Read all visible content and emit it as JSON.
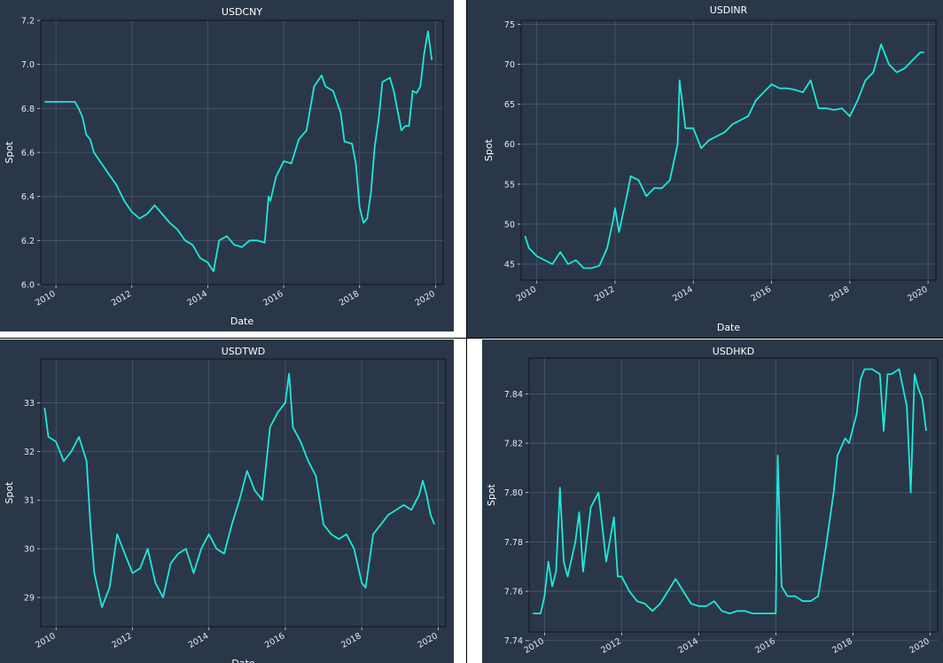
{
  "chart_data": [
    {
      "type": "line",
      "title": "USDCNY",
      "xlabel": "Date",
      "ylabel": "Spot",
      "xlim": [
        2009.6,
        2020.2
      ],
      "ylim": [
        6.0,
        7.2
      ],
      "xticks": [
        "2010",
        "2012",
        "2014",
        "2016",
        "2018",
        "2020"
      ],
      "yticks": [
        "6.0",
        "6.2",
        "6.4",
        "6.6",
        "6.8",
        "7.0",
        "7.2"
      ],
      "grid": true,
      "series": [
        {
          "color": "#1de9d9",
          "x": [
            2009.7,
            2010.0,
            2010.3,
            2010.5,
            2010.6,
            2010.7,
            2010.8,
            2010.9,
            2011.0,
            2011.2,
            2011.4,
            2011.6,
            2011.8,
            2012.0,
            2012.2,
            2012.4,
            2012.6,
            2012.8,
            2013.0,
            2013.2,
            2013.4,
            2013.6,
            2013.8,
            2014.0,
            2014.15,
            2014.3,
            2014.5,
            2014.7,
            2014.9,
            2015.1,
            2015.3,
            2015.5,
            2015.6,
            2015.65,
            2015.8,
            2016.0,
            2016.2,
            2016.4,
            2016.6,
            2016.8,
            2017.0,
            2017.1,
            2017.3,
            2017.5,
            2017.6,
            2017.8,
            2017.9,
            2018.0,
            2018.1,
            2018.2,
            2018.3,
            2018.4,
            2018.5,
            2018.6,
            2018.8,
            2018.9,
            2019.1,
            2019.2,
            2019.3,
            2019.4,
            2019.5,
            2019.6,
            2019.7,
            2019.8,
            2019.9
          ],
          "y": [
            6.83,
            6.83,
            6.83,
            6.83,
            6.8,
            6.76,
            6.68,
            6.66,
            6.6,
            6.55,
            6.5,
            6.45,
            6.38,
            6.33,
            6.3,
            6.32,
            6.36,
            6.32,
            6.28,
            6.25,
            6.2,
            6.18,
            6.12,
            6.1,
            6.06,
            6.2,
            6.22,
            6.18,
            6.17,
            6.2,
            6.2,
            6.19,
            6.4,
            6.38,
            6.49,
            6.56,
            6.55,
            6.66,
            6.7,
            6.9,
            6.95,
            6.9,
            6.88,
            6.78,
            6.65,
            6.64,
            6.55,
            6.35,
            6.28,
            6.3,
            6.42,
            6.63,
            6.75,
            6.92,
            6.94,
            6.88,
            6.7,
            6.72,
            6.72,
            6.88,
            6.87,
            6.9,
            7.05,
            7.15,
            7.02
          ]
        }
      ]
    },
    {
      "type": "line",
      "title": "USDINR",
      "xlabel": "Date",
      "ylabel": "Spot",
      "xlim": [
        2009.6,
        2020.2
      ],
      "ylim": [
        43,
        75.5
      ],
      "xticks": [
        "2010",
        "2012",
        "2014",
        "2016",
        "2018",
        "2020"
      ],
      "yticks": [
        "45",
        "50",
        "55",
        "60",
        "65",
        "70",
        "75"
      ],
      "grid": true,
      "series": [
        {
          "color": "#1de9d9",
          "x": [
            2009.7,
            2009.8,
            2010.0,
            2010.2,
            2010.4,
            2010.6,
            2010.8,
            2011.0,
            2011.2,
            2011.4,
            2011.6,
            2011.8,
            2011.95,
            2012.0,
            2012.1,
            2012.3,
            2012.4,
            2012.6,
            2012.8,
            2013.0,
            2013.2,
            2013.4,
            2013.6,
            2013.65,
            2013.8,
            2014.0,
            2014.2,
            2014.4,
            2014.6,
            2014.8,
            2015.0,
            2015.2,
            2015.4,
            2015.6,
            2015.8,
            2016.0,
            2016.2,
            2016.4,
            2016.6,
            2016.8,
            2017.0,
            2017.2,
            2017.4,
            2017.6,
            2017.8,
            2018.0,
            2018.2,
            2018.4,
            2018.6,
            2018.8,
            2019.0,
            2019.2,
            2019.4,
            2019.6,
            2019.8,
            2019.9
          ],
          "y": [
            48.5,
            47.0,
            46.0,
            45.5,
            45.0,
            46.5,
            45.0,
            45.5,
            44.5,
            44.5,
            44.8,
            47.0,
            50.5,
            52.0,
            49.0,
            53.5,
            56.0,
            55.5,
            53.5,
            54.5,
            54.5,
            55.5,
            60.0,
            68.0,
            62.0,
            62.0,
            59.5,
            60.5,
            61.0,
            61.5,
            62.5,
            63.0,
            63.5,
            65.5,
            66.5,
            67.5,
            67.0,
            67.0,
            66.8,
            66.5,
            68.0,
            64.5,
            64.5,
            64.3,
            64.5,
            63.5,
            65.5,
            68.0,
            69.0,
            72.5,
            70.0,
            69.0,
            69.5,
            70.5,
            71.5,
            71.5
          ]
        }
      ]
    },
    {
      "type": "line",
      "title": "USDTWD",
      "xlabel": "Date",
      "ylabel": "Spot",
      "xlim": [
        2009.6,
        2020.2
      ],
      "ylim": [
        28.4,
        33.9
      ],
      "xticks": [
        "2010",
        "2012",
        "2014",
        "2016",
        "2018",
        "2020"
      ],
      "yticks": [
        "29",
        "30",
        "31",
        "32",
        "33"
      ],
      "grid": true,
      "series": [
        {
          "color": "#1de9d9",
          "x": [
            2009.7,
            2009.8,
            2010.0,
            2010.2,
            2010.4,
            2010.6,
            2010.8,
            2010.9,
            2011.0,
            2011.2,
            2011.4,
            2011.6,
            2011.8,
            2012.0,
            2012.2,
            2012.4,
            2012.6,
            2012.8,
            2013.0,
            2013.2,
            2013.4,
            2013.6,
            2013.8,
            2014.0,
            2014.2,
            2014.4,
            2014.6,
            2014.8,
            2015.0,
            2015.2,
            2015.4,
            2015.6,
            2015.8,
            2016.0,
            2016.1,
            2016.2,
            2016.4,
            2016.6,
            2016.8,
            2017.0,
            2017.2,
            2017.4,
            2017.6,
            2017.8,
            2018.0,
            2018.1,
            2018.3,
            2018.5,
            2018.7,
            2018.9,
            2019.1,
            2019.3,
            2019.5,
            2019.6,
            2019.7,
            2019.8,
            2019.9
          ],
          "y": [
            32.9,
            32.3,
            32.2,
            31.8,
            32.0,
            32.3,
            31.8,
            30.5,
            29.5,
            28.8,
            29.2,
            30.3,
            29.9,
            29.5,
            29.6,
            30.0,
            29.3,
            29.0,
            29.7,
            29.9,
            30.0,
            29.5,
            30.0,
            30.3,
            30.0,
            29.9,
            30.5,
            31.0,
            31.6,
            31.2,
            31.0,
            32.5,
            32.8,
            33.0,
            33.6,
            32.5,
            32.2,
            31.8,
            31.5,
            30.5,
            30.3,
            30.2,
            30.3,
            30.0,
            29.3,
            29.2,
            30.3,
            30.5,
            30.7,
            30.8,
            30.9,
            30.8,
            31.1,
            31.4,
            31.1,
            30.7,
            30.5
          ]
        }
      ]
    },
    {
      "type": "line",
      "title": "USDHKD",
      "xlabel": "",
      "ylabel": "Spot",
      "xlim": [
        2009.6,
        2020.2
      ],
      "ylim": [
        7.7435,
        7.8545
      ],
      "xticks": [
        "2010",
        "2012",
        "2014",
        "2016",
        "2018",
        "2020"
      ],
      "yticks": [
        "7.74",
        "7.76",
        "7.78",
        "7.80",
        "7.82",
        "7.84"
      ],
      "grid": true,
      "series": [
        {
          "color": "#1de9d9",
          "x": [
            2009.7,
            2009.9,
            2010.0,
            2010.1,
            2010.2,
            2010.3,
            2010.4,
            2010.5,
            2010.6,
            2010.8,
            2010.9,
            2011.0,
            2011.2,
            2011.4,
            2011.6,
            2011.8,
            2011.9,
            2012.0,
            2012.2,
            2012.4,
            2012.6,
            2012.8,
            2013.0,
            2013.2,
            2013.4,
            2013.6,
            2013.8,
            2014.0,
            2014.2,
            2014.4,
            2014.6,
            2014.8,
            2015.0,
            2015.2,
            2015.4,
            2015.6,
            2015.8,
            2016.0,
            2016.05,
            2016.15,
            2016.3,
            2016.5,
            2016.7,
            2016.9,
            2017.1,
            2017.3,
            2017.5,
            2017.6,
            2017.8,
            2017.9,
            2018.1,
            2018.2,
            2018.3,
            2018.5,
            2018.7,
            2018.8,
            2018.9,
            2019.0,
            2019.2,
            2019.4,
            2019.5,
            2019.6,
            2019.7,
            2019.8,
            2019.9
          ],
          "y": [
            7.751,
            7.751,
            7.758,
            7.772,
            7.762,
            7.768,
            7.802,
            7.772,
            7.766,
            7.78,
            7.792,
            7.768,
            7.794,
            7.8,
            7.772,
            7.79,
            7.766,
            7.766,
            7.76,
            7.756,
            7.755,
            7.752,
            7.755,
            7.76,
            7.765,
            7.76,
            7.755,
            7.754,
            7.754,
            7.756,
            7.752,
            7.751,
            7.752,
            7.752,
            7.751,
            7.751,
            7.751,
            7.751,
            7.815,
            7.762,
            7.758,
            7.758,
            7.756,
            7.756,
            7.758,
            7.778,
            7.8,
            7.815,
            7.822,
            7.82,
            7.832,
            7.846,
            7.85,
            7.85,
            7.848,
            7.825,
            7.848,
            7.848,
            7.85,
            7.835,
            7.8,
            7.848,
            7.842,
            7.838,
            7.825
          ]
        }
      ]
    }
  ]
}
